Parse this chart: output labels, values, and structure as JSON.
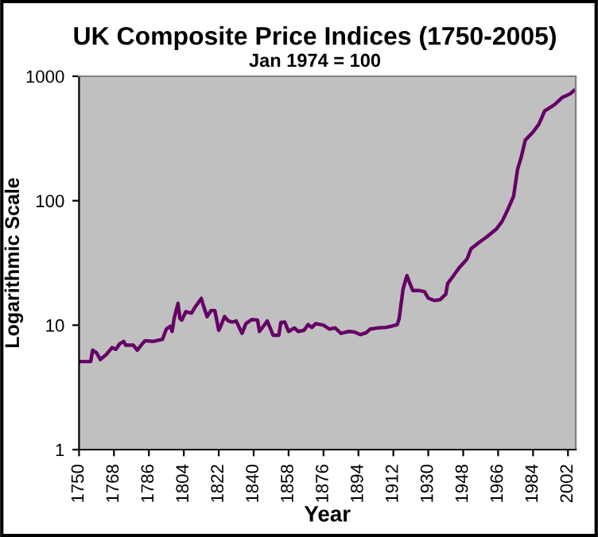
{
  "chart_data": {
    "type": "line",
    "title": "UK Composite Price Indices (1750-2005)",
    "subtitle": "Jan 1974 = 100",
    "xlabel": "Year",
    "ylabel": "Logarithmic Scale",
    "log": "y",
    "grid": false,
    "legend": false,
    "marker": "none",
    "line_style": "solid",
    "xlim": [
      1750,
      2006
    ],
    "xticks": [
      1750,
      1768,
      1786,
      1804,
      1822,
      1840,
      1858,
      1876,
      1894,
      1912,
      1930,
      1948,
      1966,
      1984,
      2002
    ],
    "ylim": [
      1,
      1000
    ],
    "yticks": [
      1,
      10,
      100,
      1000
    ],
    "x": [
      1750,
      1756,
      1757,
      1759,
      1761,
      1764,
      1767,
      1769,
      1771,
      1773,
      1774,
      1778,
      1780,
      1782,
      1784,
      1788,
      1793,
      1795,
      1797,
      1798,
      1799,
      1801,
      1802,
      1803,
      1805,
      1808,
      1810,
      1813,
      1814,
      1816,
      1818,
      1820,
      1822,
      1823,
      1825,
      1827,
      1829,
      1831,
      1834,
      1836,
      1839,
      1842,
      1843,
      1845,
      1847,
      1849,
      1850,
      1853,
      1854,
      1856,
      1858,
      1861,
      1863,
      1866,
      1868,
      1870,
      1872,
      1876,
      1879,
      1882,
      1885,
      1889,
      1892,
      1895,
      1898,
      1900,
      1904,
      1908,
      1911,
      1914,
      1915,
      1917,
      1919,
      1920,
      1922,
      1925,
      1928,
      1930,
      1933,
      1936,
      1939,
      1940,
      1943,
      1946,
      1950,
      1952,
      1956,
      1960,
      1965,
      1968,
      1971,
      1974,
      1976,
      1978,
      1980,
      1984,
      1987,
      1990,
      1995,
      1999,
      2003,
      2005
    ],
    "series": [
      {
        "color": "#660066",
        "values": [
          5.1,
          5.1,
          6.3,
          6.0,
          5.3,
          5.8,
          6.6,
          6.4,
          7.1,
          7.4,
          6.9,
          6.9,
          6.3,
          6.9,
          7.5,
          7.4,
          7.7,
          9.3,
          9.8,
          8.9,
          11.3,
          15,
          11.3,
          11.0,
          12.8,
          12.5,
          14.1,
          16.4,
          14.5,
          11.7,
          13.1,
          13.1,
          9.1,
          9.8,
          11.7,
          10.8,
          10.6,
          10.8,
          8.6,
          10.3,
          11.1,
          11.0,
          8.9,
          9.8,
          10.8,
          9.1,
          8.3,
          8.3,
          10.5,
          10.6,
          8.9,
          9.5,
          8.9,
          9.1,
          10.1,
          9.6,
          10.3,
          10.0,
          9.3,
          9.5,
          8.6,
          8.9,
          8.8,
          8.4,
          8.7,
          9.3,
          9.5,
          9.6,
          9.8,
          10.1,
          11.3,
          19.5,
          25,
          22.7,
          19.0,
          19.0,
          18.6,
          16.5,
          15.8,
          16.0,
          17.7,
          21.6,
          25,
          29,
          34,
          41,
          46,
          51,
          59,
          68,
          85,
          109,
          178,
          227,
          307,
          356,
          412,
          527,
          591,
          674,
          720,
          766
        ]
      }
    ]
  }
}
